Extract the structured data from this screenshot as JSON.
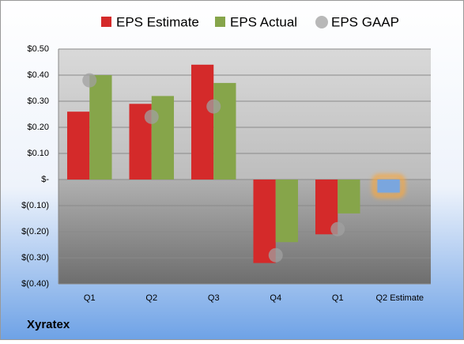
{
  "chart_data": {
    "type": "bar",
    "categories": [
      "Q1",
      "Q2",
      "Q3",
      "Q4",
      "Q1",
      "Q2 Estimate"
    ],
    "series": [
      {
        "name": "EPS Estimate",
        "color": "#d42a2a",
        "values": [
          0.26,
          0.29,
          0.44,
          -0.32,
          -0.21,
          -0.05
        ],
        "highlight": {
          "index": 5,
          "color": "#7aa6de",
          "glow": "#f5a742"
        }
      },
      {
        "name": "EPS Actual",
        "color": "#86a54a",
        "values": [
          0.4,
          0.32,
          0.37,
          -0.24,
          -0.13,
          null
        ]
      },
      {
        "name": "EPS GAAP",
        "color": "#a0a0a0",
        "marker": "circle",
        "values": [
          0.38,
          0.24,
          0.28,
          -0.29,
          -0.19,
          null
        ]
      }
    ],
    "ylim": [
      -0.4,
      0.5
    ],
    "yticks": [
      {
        "value": 0.5,
        "label": "$0.50"
      },
      {
        "value": 0.4,
        "label": "$0.40"
      },
      {
        "value": 0.3,
        "label": "$0.30"
      },
      {
        "value": 0.2,
        "label": "$0.20"
      },
      {
        "value": 0.1,
        "label": "$0.10"
      },
      {
        "value": 0,
        "label": "$-"
      },
      {
        "value": -0.1,
        "label": "$(0.10)"
      },
      {
        "value": -0.2,
        "label": "$(0.20)"
      },
      {
        "value": -0.3,
        "label": "$(0.30)"
      },
      {
        "value": -0.4,
        "label": "$(0.40)"
      }
    ],
    "grid": true,
    "legend": "top",
    "footer": "Xyratex"
  }
}
